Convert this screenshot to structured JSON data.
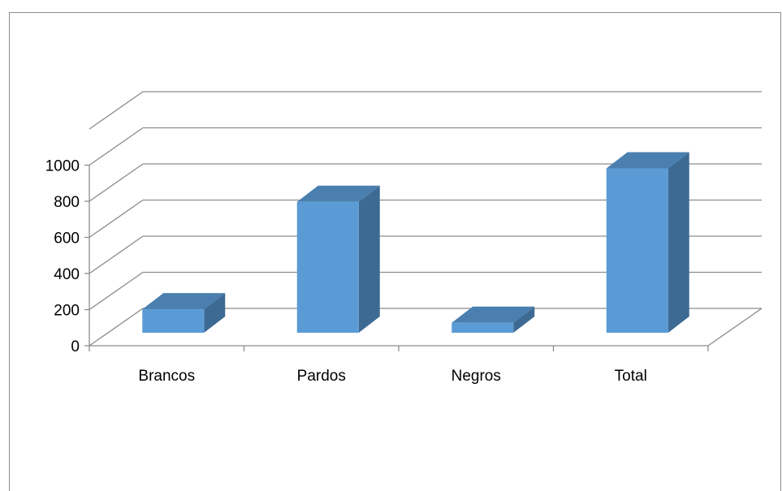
{
  "chart_data": {
    "type": "bar",
    "style": "3d-column",
    "categories": [
      "Brancos",
      "Pardos",
      "Negros",
      "Total"
    ],
    "values": [
      130,
      725,
      55,
      910
    ],
    "ylim": [
      0,
      1000
    ],
    "yticks": [
      "0",
      "200",
      "400",
      "600",
      "800",
      "1000"
    ],
    "grid": true,
    "legend": "none",
    "colors": {
      "front": "#5b9bd5",
      "side": "#3d6a93",
      "top": "#4a7fb0",
      "grid": "#8c8c8c"
    }
  }
}
